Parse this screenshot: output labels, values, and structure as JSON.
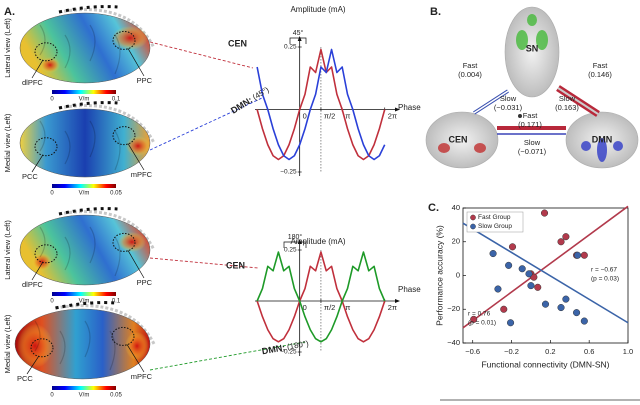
{
  "figure": {
    "panel_labels": [
      "A.",
      "B.",
      "C."
    ]
  },
  "brains": [
    {
      "view": "Lateral view (Left)",
      "regions": [
        "dlPFC",
        "PPC"
      ],
      "colorbar": [
        "0",
        "V/m",
        "0.1"
      ]
    },
    {
      "view": "Medial view (Left)",
      "regions": [
        "PCC",
        "mPFC"
      ],
      "colorbar": [
        "0",
        "V/m",
        "0.05"
      ]
    },
    {
      "view": "Lateral view (Left)",
      "regions": [
        "dlPFC",
        "PPC"
      ],
      "colorbar": [
        "0",
        "V/m",
        "0.1"
      ]
    },
    {
      "view": "Medial view (Left)",
      "regions": [
        "PCC",
        "mPFC"
      ],
      "colorbar": [
        "0",
        "V/m",
        "0.05"
      ]
    }
  ],
  "network": {
    "nodes": [
      "SN",
      "CEN",
      "DMN"
    ],
    "edges": [
      {
        "fast": [
          "Fast",
          "(0.004)"
        ],
        "slow": [
          "Slow",
          "(−0.031)"
        ]
      },
      {
        "fast": [
          "Fast",
          "(0.146)"
        ],
        "slow": [
          "Slow",
          "(0.163)"
        ]
      },
      {
        "fast": [
          "Fast",
          "(0.171)"
        ],
        "slow": [
          "Slow",
          "(−0.071)"
        ]
      }
    ]
  },
  "chart_data": [
    {
      "type": "line",
      "y_label": "Amplitude (mA)",
      "x_label": "Phase",
      "bracket_label": "45°",
      "phase_label": "(45°)",
      "x": [
        -3.142,
        -2.749,
        -2.356,
        -1.963,
        -1.571,
        -1.178,
        -0.785,
        -0.393,
        0,
        0.393,
        0.785,
        1.178,
        1.571,
        1.963,
        2.356,
        2.749,
        3.142,
        3.534,
        3.927,
        4.32,
        4.712,
        5.105,
        5.498,
        5.89,
        6.283
      ],
      "series": [
        {
          "name": "CEN",
          "color": "#c0303c",
          "values": [
            0,
            -0.077,
            -0.141,
            -0.185,
            -0.2,
            -0.185,
            -0.141,
            -0.077,
            0,
            0.061,
            0.17,
            0.148,
            0.24,
            0.148,
            0.17,
            0.061,
            0,
            -0.077,
            -0.141,
            -0.185,
            -0.2,
            -0.185,
            -0.141,
            -0.077,
            0
          ]
        },
        {
          "name": "DMN:",
          "color": "#2a40d8",
          "values": [
            0.17,
            0.061,
            0,
            -0.077,
            -0.141,
            -0.185,
            -0.2,
            -0.185,
            -0.141,
            -0.077,
            0,
            0.061,
            0.17,
            0.148,
            0.24,
            0.148,
            0.17,
            0.061,
            0,
            -0.077,
            -0.141,
            -0.185,
            -0.2,
            -0.185,
            -0.141
          ]
        }
      ],
      "xlim": [
        -3.3,
        6.6
      ],
      "ylim": [
        -0.25,
        0.25
      ],
      "xticks": [
        0,
        {
          "value": 1.571,
          "label": "π/2"
        },
        {
          "value": 3.142,
          "label": "π"
        },
        {
          "value": 6.283,
          "label": "2π"
        }
      ],
      "yticks": [
        {
          "value": -0.25,
          "label": "−0.25"
        },
        0.25
      ]
    },
    {
      "type": "line",
      "y_label": "Amplitude (mA)",
      "x_label": "Phase",
      "bracket_label": "180°",
      "phase_label": "(180°)",
      "x": [
        -3.142,
        -2.749,
        -2.356,
        -1.963,
        -1.571,
        -1.178,
        -0.785,
        -0.393,
        0,
        0.393,
        0.785,
        1.178,
        1.571,
        1.963,
        2.356,
        2.749,
        3.142,
        3.534,
        3.927,
        4.32,
        4.712,
        5.105,
        5.498,
        5.89,
        6.283
      ],
      "series": [
        {
          "name": "CEN",
          "color": "#c0303c",
          "values": [
            0,
            -0.077,
            -0.141,
            -0.185,
            -0.2,
            -0.185,
            -0.141,
            -0.077,
            0,
            0.061,
            0.17,
            0.148,
            0.24,
            0.148,
            0.17,
            0.061,
            0,
            -0.077,
            -0.141,
            -0.185,
            -0.2,
            -0.185,
            -0.141,
            -0.077,
            0
          ]
        },
        {
          "name": "DMN:",
          "color": "#1e9a28",
          "values": [
            0,
            0.061,
            0.17,
            0.148,
            0.24,
            0.148,
            0.17,
            0.061,
            0,
            -0.077,
            -0.141,
            -0.185,
            -0.2,
            -0.185,
            -0.141,
            -0.077,
            0,
            0.061,
            0.17,
            0.148,
            0.24,
            0.148,
            0.17,
            0.061,
            0
          ]
        }
      ],
      "xlim": [
        -3.3,
        6.6
      ],
      "ylim": [
        -0.25,
        0.25
      ],
      "xticks": [
        0,
        {
          "value": 1.571,
          "label": "π/2"
        },
        {
          "value": 3.142,
          "label": "π"
        },
        {
          "value": 6.283,
          "label": "2π"
        }
      ],
      "yticks": [
        {
          "value": -0.25,
          "label": "−0.25"
        },
        0.25
      ]
    },
    {
      "type": "scatter",
      "x_label": "Functional connectivity (DMN-SN)",
      "y_label": "Performance accuracy (%)",
      "series": [
        {
          "name": "Fast Group",
          "color": "#b23a4c",
          "x": [
            -0.59,
            -0.28,
            -0.19,
            0.0,
            0.03,
            0.07,
            0.14,
            0.31,
            0.36,
            0.47,
            0.55
          ],
          "values": [
            -26,
            -20,
            17,
            1,
            -1,
            -7,
            37,
            20,
            23,
            12,
            12
          ],
          "fit": {
            "x": [
              -0.7,
              1.0
            ],
            "values": [
              -31,
              41
            ]
          }
        },
        {
          "name": "Slow Group",
          "color": "#3b64a8",
          "x": [
            -0.39,
            -0.23,
            -0.09,
            -0.02,
            0.0,
            -0.34,
            -0.21,
            0.15,
            0.31,
            0.36,
            0.47,
            0.55,
            0.48
          ],
          "values": [
            13,
            6,
            4,
            1,
            -6,
            -8,
            -28,
            -17,
            -19,
            -14,
            -22,
            -27,
            12
          ],
          "fit": {
            "x": [
              -0.7,
              1.0
            ],
            "values": [
              31,
              -28
            ]
          }
        }
      ],
      "annotations": [
        [
          "r = 0.76",
          "(p = 0.01)"
        ],
        [
          "r = −0.67",
          "(p = 0.03)"
        ]
      ],
      "legend": "upper left",
      "xlim": [
        -0.7,
        1.0
      ],
      "ylim": [
        -40,
        40
      ],
      "xticks": [
        {
          "value": -0.6,
          "label": "−0.6"
        },
        {
          "value": -0.2,
          "label": "−0.2"
        },
        0.2,
        0.6,
        {
          "value": 1.0,
          "label": "1.0"
        }
      ],
      "yticks": [
        {
          "value": -40,
          "label": "−40"
        },
        {
          "value": -20,
          "label": "−20"
        },
        0,
        20,
        40
      ]
    }
  ]
}
